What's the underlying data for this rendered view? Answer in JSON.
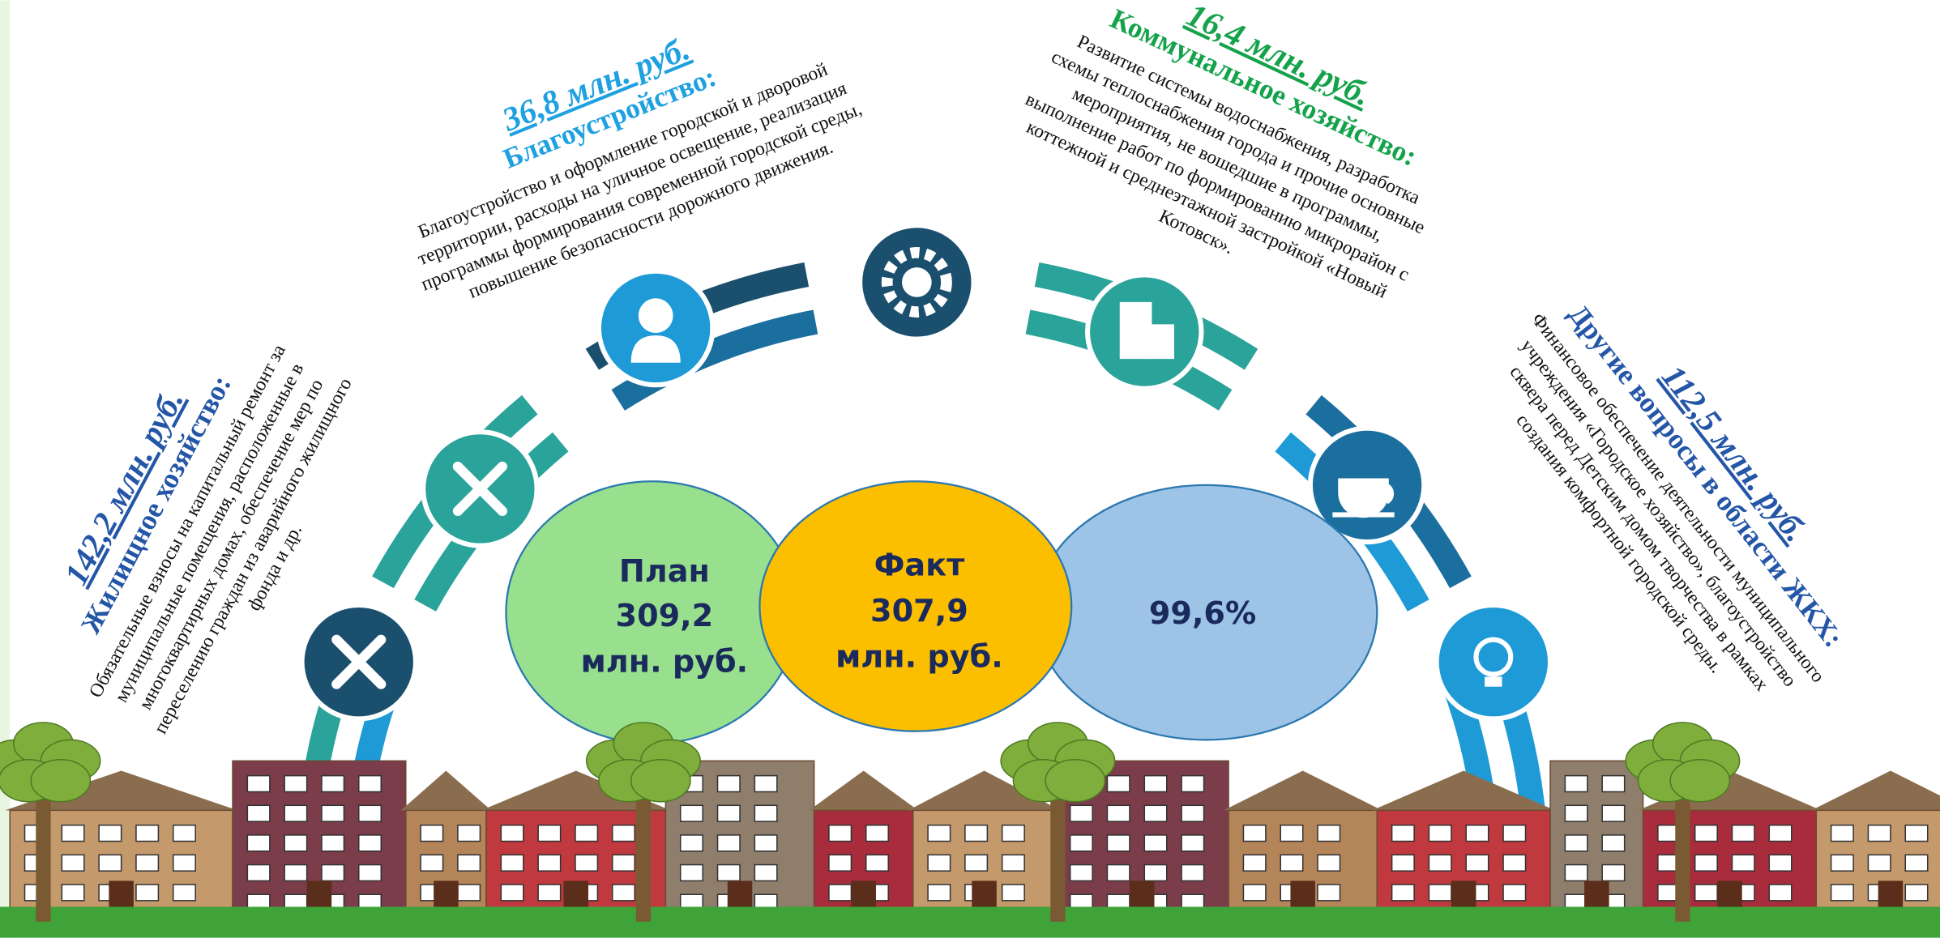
{
  "sections": [
    {
      "amount": "142,2 млн. руб.",
      "title": "Жилищное хозяйство:",
      "description_lines": [
        "Обязательные взносы на капитальный ремонт за",
        "муниципальные помещения, расположенные в",
        "многоквартирных домах, обеспечение мер по",
        "переселению граждан из аварийного жилищного",
        "фонда и др."
      ]
    },
    {
      "amount": "36,8 млн. руб.",
      "title": "Благоустройство:",
      "description_lines": [
        "Благоустройство и оформление городской  и дворовой",
        "территории, расходы на уличное освещение, реализация",
        "программы формирования современной городской среды,",
        "повышение безопасности дорожного движения."
      ]
    },
    {
      "amount": "16,4 млн. руб.",
      "title": "Коммунальное хозяйство:",
      "description_lines": [
        "Развитие системы водоснабжения, разработка",
        "схемы теплоснабжения города и прочие основные",
        "мероприятия, не вошедшие в программы,",
        "выполнение работ  по формированию микрорайон с",
        "коттежной и среднеэтажной застройкой  «Новый",
        "Котовск»."
      ]
    },
    {
      "amount": "112,5 млн. руб.",
      "title": "Другие вопросы в области ЖКХ:",
      "description_lines": [
        "Финансовое обеспечение деятельности муниципального",
        "учреждения «Городское хозяйство», благоустройство",
        "сквера перед Детским домом творчества в рамках",
        "создания комфортной городской среды."
      ]
    }
  ],
  "plan": {
    "label": "План",
    "value": "309,2",
    "unit": "млн. руб."
  },
  "fact": {
    "label": "Факт",
    "value": "307,9",
    "unit": "млн. руб."
  },
  "percent": "99,6%"
}
